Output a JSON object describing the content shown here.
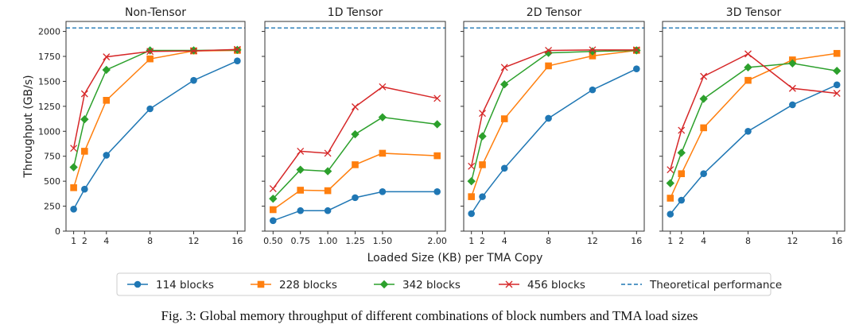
{
  "chart_data": {
    "type": "line",
    "figure_caption": "Fig. 3: Global memory throughput of different combinations of block numbers and TMA load sizes",
    "ylabel": "Throughput (GB/s)",
    "xlabel": "Loaded Size (KB) per TMA Copy",
    "ylim": [
      0,
      2100
    ],
    "yticks": [
      0,
      250,
      500,
      750,
      1000,
      1250,
      1500,
      1750,
      2000
    ],
    "grid": false,
    "legend": {
      "placement": "bottom-center",
      "entries": [
        "114 blocks",
        "228 blocks",
        "342 blocks",
        "456 blocks",
        "Theoretical performance"
      ]
    },
    "theoretical_performance": 2035,
    "series_styles": [
      {
        "name": "114 blocks",
        "color": "#1f77b4",
        "marker": "circle"
      },
      {
        "name": "228 blocks",
        "color": "#ff7f0e",
        "marker": "square"
      },
      {
        "name": "342 blocks",
        "color": "#2ca02c",
        "marker": "diamond"
      },
      {
        "name": "456 blocks",
        "color": "#d62728",
        "marker": "x"
      }
    ],
    "theoretical_color": "#1f77b4",
    "panels": [
      {
        "title": "Non-Tensor",
        "x": [
          1,
          2,
          4,
          8,
          12,
          16
        ],
        "xtick_labels": [
          "1",
          "2",
          "4",
          "8",
          "12",
          "16"
        ],
        "xlim": [
          0.3,
          16.7
        ],
        "series": [
          {
            "name": "114 blocks",
            "values": [
              220,
              420,
              760,
              1225,
              1510,
              1705
            ]
          },
          {
            "name": "228 blocks",
            "values": [
              435,
              800,
              1310,
              1725,
              1805,
              1810
            ]
          },
          {
            "name": "342 blocks",
            "values": [
              640,
              1120,
              1615,
              1810,
              1810,
              1815
            ]
          },
          {
            "name": "456 blocks",
            "values": [
              830,
              1375,
              1745,
              1800,
              1805,
              1820
            ]
          }
        ]
      },
      {
        "title": "1D Tensor",
        "x": [
          0.5,
          0.75,
          1.0,
          1.25,
          1.5,
          2.0
        ],
        "xtick_labels": [
          "0.50",
          "0.75",
          "1.00",
          "1.25",
          "1.50",
          "2.00"
        ],
        "xlim": [
          0.425,
          2.075
        ],
        "series": [
          {
            "name": "114 blocks",
            "values": [
              105,
              205,
              205,
              335,
              395,
              395
            ]
          },
          {
            "name": "228 blocks",
            "values": [
              215,
              410,
              405,
              665,
              780,
              755
            ]
          },
          {
            "name": "342 blocks",
            "values": [
              325,
              615,
              600,
              970,
              1140,
              1070
            ]
          },
          {
            "name": "456 blocks",
            "values": [
              425,
              800,
              780,
              1245,
              1445,
              1330
            ]
          }
        ]
      },
      {
        "title": "2D Tensor",
        "x": [
          1,
          2,
          4,
          8,
          12,
          16
        ],
        "xtick_labels": [
          "1",
          "2",
          "4",
          "8",
          "12",
          "16"
        ],
        "xlim": [
          0.3,
          16.7
        ],
        "series": [
          {
            "name": "114 blocks",
            "values": [
              175,
              345,
              630,
              1130,
              1415,
              1625
            ]
          },
          {
            "name": "228 blocks",
            "values": [
              345,
              665,
              1125,
              1655,
              1755,
              1810
            ]
          },
          {
            "name": "342 blocks",
            "values": [
              500,
              950,
              1470,
              1785,
              1800,
              1810
            ]
          },
          {
            "name": "456 blocks",
            "values": [
              650,
              1180,
              1640,
              1810,
              1815,
              1815
            ]
          }
        ]
      },
      {
        "title": "3D Tensor",
        "x": [
          1,
          2,
          4,
          8,
          12,
          16
        ],
        "xtick_labels": [
          "1",
          "2",
          "4",
          "8",
          "12",
          "16"
        ],
        "xlim": [
          0.3,
          16.7
        ],
        "series": [
          {
            "name": "114 blocks",
            "values": [
              170,
              310,
              575,
              1000,
              1265,
              1465
            ]
          },
          {
            "name": "228 blocks",
            "values": [
              330,
              575,
              1035,
              1510,
              1715,
              1780
            ]
          },
          {
            "name": "342 blocks",
            "values": [
              480,
              785,
              1325,
              1640,
              1680,
              1605
            ]
          },
          {
            "name": "456 blocks",
            "values": [
              615,
              1010,
              1550,
              1775,
              1430,
              1380
            ]
          }
        ]
      }
    ]
  }
}
